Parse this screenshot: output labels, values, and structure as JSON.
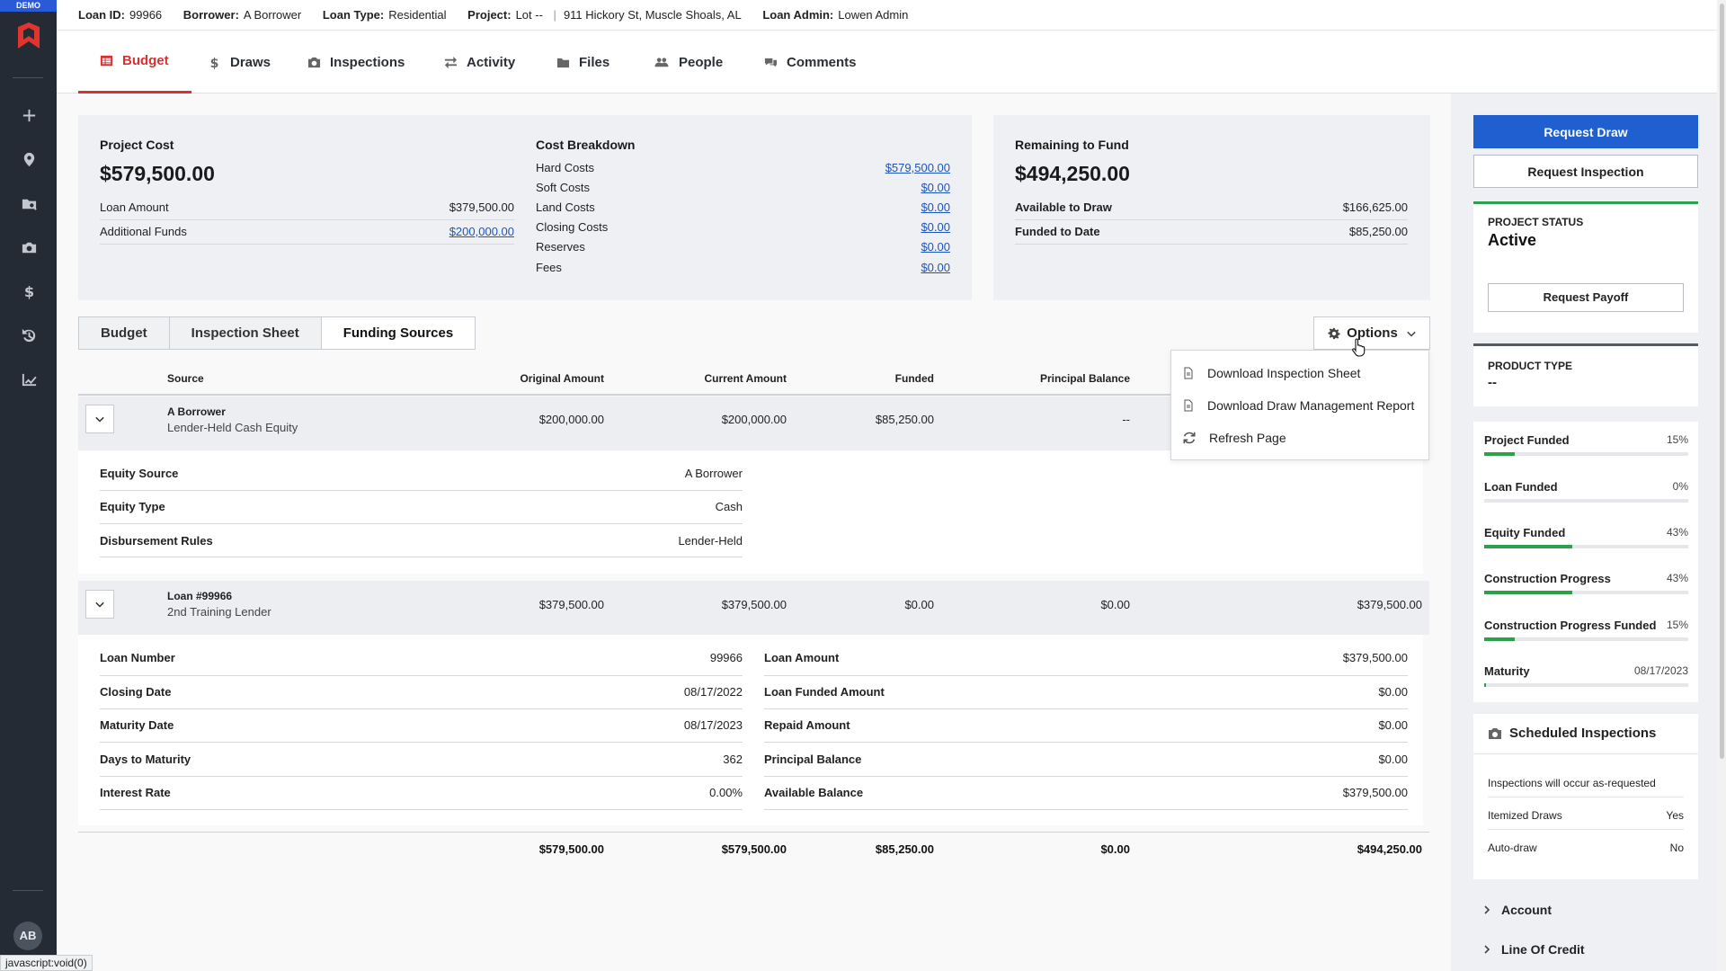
{
  "sidebar": {
    "demo_label": "DEMO",
    "icons": [
      "logo-icon",
      "add-icon",
      "location-icon",
      "search-folder-icon",
      "camera-icon",
      "dollar-icon",
      "history-icon",
      "chart-icon"
    ],
    "avatar": "AB"
  },
  "statusbar": "javascript:void(0)",
  "info": {
    "loan_id_label": "Loan ID:",
    "loan_id": "99966",
    "borrower_label": "Borrower:",
    "borrower": "A Borrower",
    "loan_type_label": "Loan Type:",
    "loan_type": "Residential",
    "project_label": "Project:",
    "project": "Lot --",
    "address": "911 Hickory St, Muscle Shoals, AL",
    "loan_admin_label": "Loan Admin:",
    "loan_admin": "Lowen Admin"
  },
  "tabs": [
    "Budget",
    "Draws",
    "Inspections",
    "Activity",
    "Files",
    "People",
    "Comments"
  ],
  "project_cost": {
    "title": "Project Cost",
    "amount": "$579,500.00",
    "loan_amount_label": "Loan Amount",
    "loan_amount": "$379,500.00",
    "additional_funds_label": "Additional Funds",
    "additional_funds": "$200,000.00"
  },
  "cost_breakdown": {
    "title": "Cost Breakdown",
    "rows": [
      {
        "label": "Hard Costs",
        "value": "$579,500.00"
      },
      {
        "label": "Soft Costs",
        "value": "$0.00"
      },
      {
        "label": "Land Costs",
        "value": "$0.00"
      },
      {
        "label": "Closing Costs",
        "value": "$0.00"
      },
      {
        "label": "Reserves",
        "value": "$0.00"
      },
      {
        "label": "Fees",
        "value": "$0.00"
      }
    ]
  },
  "remaining": {
    "title": "Remaining to Fund",
    "amount": "$494,250.00",
    "available_label": "Available to Draw",
    "available": "$166,625.00",
    "funded_label": "Funded to Date",
    "funded": "$85,250.00"
  },
  "subtabs": [
    "Budget",
    "Inspection Sheet",
    "Funding Sources"
  ],
  "options": {
    "label": "Options",
    "items": [
      "Download Inspection Sheet",
      "Download Draw Management Report",
      "Refresh Page"
    ]
  },
  "table": {
    "headers": [
      "Source",
      "Original Amount",
      "Current Amount",
      "Funded",
      "Principal Balance"
    ],
    "rows": [
      {
        "name": "A Borrower",
        "subtitle": "Lender-Held Cash Equity",
        "original": "$200,000.00",
        "current": "$200,000.00",
        "funded": "$85,250.00",
        "principal": "--",
        "details": [
          {
            "label": "Equity Source",
            "value": "A Borrower"
          },
          {
            "label": "Equity Type",
            "value": "Cash"
          },
          {
            "label": "Disbursement Rules",
            "value": "Lender-Held"
          }
        ]
      },
      {
        "name": "Loan #99966",
        "subtitle": "2nd Training Lender",
        "original": "$379,500.00",
        "current": "$379,500.00",
        "funded": "$0.00",
        "principal": "$0.00",
        "available": "$379,500.00",
        "details_left": [
          {
            "label": "Loan Number",
            "value": "99966"
          },
          {
            "label": "Closing Date",
            "value": "08/17/2022"
          },
          {
            "label": "Maturity Date",
            "value": "08/17/2023"
          },
          {
            "label": "Days to Maturity",
            "value": "362"
          },
          {
            "label": "Interest Rate",
            "value": "0.00%"
          }
        ],
        "details_right": [
          {
            "label": "Loan Amount",
            "value": "$379,500.00"
          },
          {
            "label": "Loan Funded Amount",
            "value": "$0.00"
          },
          {
            "label": "Repaid Amount",
            "value": "$0.00"
          },
          {
            "label": "Principal Balance",
            "value": "$0.00"
          },
          {
            "label": "Available Balance",
            "value": "$379,500.00"
          }
        ]
      }
    ],
    "totals": {
      "original": "$579,500.00",
      "current": "$579,500.00",
      "funded": "$85,250.00",
      "principal": "$0.00",
      "available": "$494,250.00"
    }
  },
  "right": {
    "request_draw": "Request Draw",
    "request_inspection": "Request Inspection",
    "status_label": "PROJECT STATUS",
    "status": "Active",
    "request_payoff": "Request Payoff",
    "product_type_label": "PRODUCT TYPE",
    "product_type": "--",
    "progress": [
      {
        "label": "Project Funded",
        "value": "15%",
        "pct": 15
      },
      {
        "label": "Loan Funded",
        "value": "0%",
        "pct": 0
      },
      {
        "label": "Equity Funded",
        "value": "43%",
        "pct": 43
      },
      {
        "label": "Construction Progress",
        "value": "43%",
        "pct": 43
      },
      {
        "label": "Construction Progress Funded",
        "value": "15%",
        "pct": 15
      },
      {
        "label": "Maturity",
        "value": "08/17/2023",
        "pct": 1
      }
    ],
    "scheduled_title": "Scheduled Inspections",
    "scheduled_note": "Inspections will occur as-requested",
    "itemized_label": "Itemized Draws",
    "itemized": "Yes",
    "autodraw_label": "Auto-draw",
    "autodraw": "No",
    "account": "Account",
    "line_of_credit": "Line Of Credit"
  },
  "colors": {
    "accent_red": "#d8312f",
    "primary_blue": "#1f5fd0",
    "progress_green": "#2e9f4a",
    "sidebar": "#242b35"
  }
}
